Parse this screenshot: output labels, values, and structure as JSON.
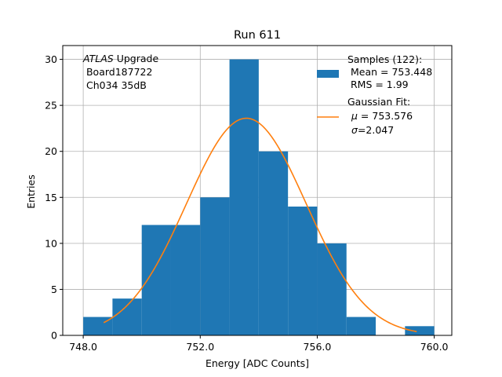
{
  "chart_data": {
    "type": "bar",
    "title": "Run 611",
    "xlabel": "Energy [ADC Counts]",
    "ylabel": "Entries",
    "xlim": [
      747.3,
      760.6
    ],
    "ylim": [
      0,
      31.5
    ],
    "grid": true,
    "x_ticks": [
      748.0,
      752.0,
      756.0,
      760.0
    ],
    "x_tick_labels": [
      "748.0",
      "752.0",
      "756.0",
      "760.0"
    ],
    "y_ticks": [
      0,
      5,
      10,
      15,
      20,
      25,
      30
    ],
    "y_tick_labels": [
      "0",
      "5",
      "10",
      "15",
      "20",
      "25",
      "30"
    ],
    "histogram": {
      "bin_edges": [
        748,
        749,
        750,
        751,
        752,
        753,
        754,
        755,
        756,
        757,
        758,
        759,
        760
      ],
      "counts": [
        2,
        4,
        12,
        12,
        15,
        30,
        20,
        14,
        10,
        2,
        0,
        1
      ],
      "color": "#1f77b4"
    },
    "gaussian_fit": {
      "mu": 753.576,
      "sigma": 2.047,
      "amplitude": 23.6,
      "x_range": [
        748.7,
        759.4
      ],
      "color": "#ff7f0e"
    },
    "annotation": {
      "line1_italic": "ATLAS",
      "line1_rest": " Upgrade",
      "line2": " Board187722",
      "line3": " Ch034 35dB"
    },
    "legend": {
      "placement": "top-right",
      "samples": [
        "Samples (122):",
        " Mean = 753.448",
        " RMS = 1.99"
      ],
      "fit_line1": "Gaussian Fit:",
      "fit_mu_sym": "μ",
      "fit_mu_val": " = 753.576",
      "fit_sigma_sym": "σ",
      "fit_sigma_val": "=2.047"
    }
  }
}
